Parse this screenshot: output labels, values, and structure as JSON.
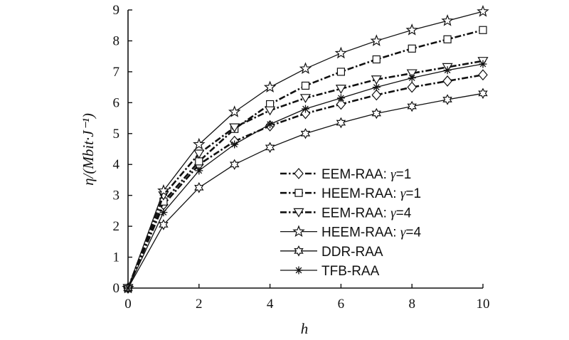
{
  "chart_data": {
    "type": "line",
    "xlabel": "h",
    "ylabel": "η/(Mbit·J⁻¹)",
    "xlim": [
      0,
      10
    ],
    "ylim": [
      0,
      9
    ],
    "xticks": [
      "0",
      "2",
      "4",
      "6",
      "8",
      "10"
    ],
    "yticks": [
      "0",
      "1",
      "2",
      "3",
      "4",
      "5",
      "6",
      "7",
      "8",
      "9"
    ],
    "grid": false,
    "legend_position": "lower-right",
    "x": [
      0,
      1,
      2,
      3,
      4,
      5,
      6,
      7,
      8,
      9,
      10
    ],
    "series": [
      {
        "name": "EEM-RAA: γ=1",
        "label_main": "EEM-RAA: ",
        "label_gamma": "γ",
        "label_value": "=1",
        "marker": "diamond",
        "line": "dashdot",
        "values": [
          0,
          2.7,
          4.0,
          4.75,
          5.25,
          5.65,
          5.95,
          6.25,
          6.5,
          6.7,
          6.9
        ]
      },
      {
        "name": "HEEM-RAA: γ=1",
        "label_main": "HEEM-RAA: ",
        "label_gamma": "γ",
        "label_value": "=1",
        "marker": "square",
        "line": "dashdot",
        "values": [
          0,
          2.8,
          4.1,
          5.15,
          5.95,
          6.55,
          7.0,
          7.4,
          7.75,
          8.05,
          8.35
        ]
      },
      {
        "name": "EEM-RAA: γ=4",
        "label_main": "EEM-RAA: ",
        "label_gamma": "γ",
        "label_value": "=4",
        "marker": "triangle-down",
        "line": "dashdot",
        "values": [
          0,
          3.0,
          4.35,
          5.2,
          5.75,
          6.15,
          6.45,
          6.75,
          6.95,
          7.15,
          7.35
        ]
      },
      {
        "name": "HEEM-RAA: γ=4",
        "label_main": "HEEM-RAA: ",
        "label_gamma": "γ",
        "label_value": "=4",
        "marker": "star5",
        "line": "solid",
        "values": [
          0,
          3.15,
          4.65,
          5.7,
          6.5,
          7.1,
          7.6,
          8.0,
          8.35,
          8.65,
          8.95
        ]
      },
      {
        "name": "DDR-RAA",
        "label_main": "DDR-RAA",
        "label_gamma": "",
        "label_value": "",
        "marker": "star6",
        "line": "solid",
        "values": [
          0,
          2.05,
          3.25,
          4.0,
          4.55,
          5.0,
          5.35,
          5.65,
          5.88,
          6.1,
          6.3
        ]
      },
      {
        "name": "TFB-RAA",
        "label_main": "TFB-RAA",
        "label_gamma": "",
        "label_value": "",
        "marker": "asterisk",
        "line": "solid",
        "values": [
          0,
          2.45,
          3.8,
          4.65,
          5.3,
          5.8,
          6.15,
          6.5,
          6.8,
          7.05,
          7.25
        ]
      }
    ]
  }
}
